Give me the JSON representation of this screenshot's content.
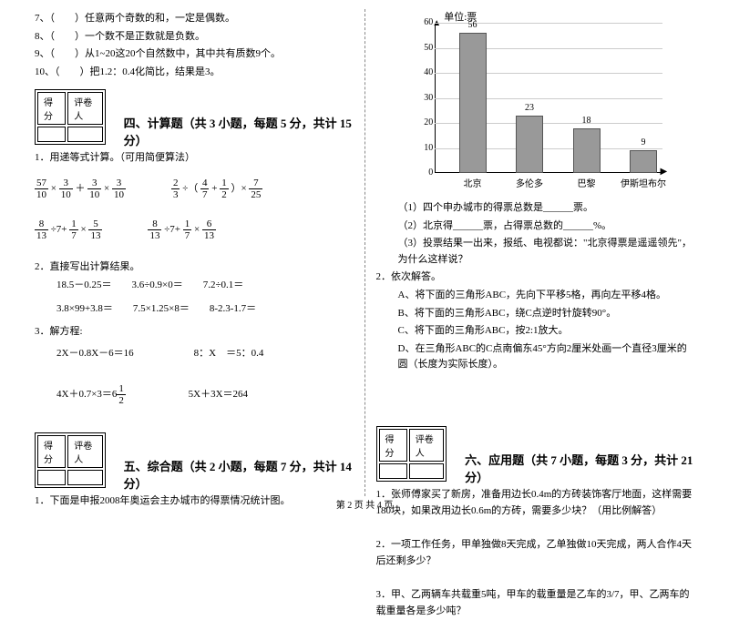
{
  "leftCol": {
    "q7": "7、（　　）任意两个奇数的和，一定是偶数。",
    "q8": "8、（　　）一个数不是正数就是负数。",
    "q9": "9、（　　）从1~20这20个自然数中，其中共有质数9个。",
    "q10": "10、（　　）把1.2：0.4化简比，结果是3。",
    "scoreHeader1": "得分",
    "scoreHeader2": "评卷人",
    "section4": "四、计算题（共 3 小题，每题 5 分，共计 15 分）",
    "calc1_title": "1．用递等式计算。（可用简便算法）",
    "c1a_n1": "57",
    "c1a_d1": "10",
    "c1a_n2": "3",
    "c1a_d2": "10",
    "c1a_n3": "3",
    "c1a_d3": "10",
    "c1b_n1": "2",
    "c1b_d1": "3",
    "c1b_n2": "4",
    "c1b_d2": "7",
    "c1b_n3": "1",
    "c1b_d3": "2",
    "c1b_n4": "7",
    "c1b_d4": "25",
    "c1c_n1": "8",
    "c1c_d1": "13",
    "c1c_n2": "1",
    "c1c_d2": "7",
    "c1c_n3": "5",
    "c1c_d3": "13",
    "c1d_n1": "8",
    "c1d_d1": "13",
    "c1d_n2": "1",
    "c1d_d2": "7",
    "c1d_n3": "6",
    "c1d_d3": "13",
    "calc2_title": "2．直接写出计算结果。",
    "c2a": "18.5－0.25＝",
    "c2b": "3.6÷0.9×0＝",
    "c2c": "7.2÷0.1＝",
    "c2d": "3.8×99+3.8＝",
    "c2e": "7.5×1.25×8＝",
    "c2f": "8-2.3-1.7＝",
    "calc3_title": "3．解方程:",
    "c3a": "2X－0.8X－6＝16",
    "c3b": "8：X　＝5：0.4",
    "c3c_pre": "4X＋0.7×3＝6",
    "c3c_n": "1",
    "c3c_d": "2",
    "c3d": "5X＋3X＝264",
    "section5": "五、综合题（共 2 小题，每题 7 分，共计 14 分）",
    "comp1": "1．下面是申报2008年奥运会主办城市的得票情况统计图。"
  },
  "rightCol": {
    "chart": {
      "unit": "单位:票",
      "ymax": 60,
      "ystep": 10,
      "categories": [
        "北京",
        "多伦多",
        "巴黎",
        "伊斯坦布尔"
      ],
      "values": [
        56,
        23,
        18,
        9
      ],
      "bar_color": "#999999",
      "grid_color": "#cccccc"
    },
    "q1_1": "（1）四个申办城市的得票总数是______票。",
    "q1_2": "（2）北京得______票，占得票总数的______%。",
    "q1_3": "（3）投票结果一出来，报纸、电视都说：\"北京得票是遥遥领先\"，为什么这样说？",
    "q2_title": "2．依次解答。",
    "q2a": "A、将下面的三角形ABC，先向下平移5格，再向左平移4格。",
    "q2b": "B、将下面的三角形ABC，绕C点逆时针旋转90°。",
    "q2c": "C、将下面的三角形ABC，按2:1放大。",
    "q2d": "D、在三角形ABC的C点南偏东45°方向2厘米处画一个直径3厘米的圆（长度为实际长度）。",
    "scoreHeader1": "得分",
    "scoreHeader2": "评卷人",
    "section6": "六、应用题（共 7 小题，每题 3 分，共计 21 分）",
    "app1": "1．张师傅家买了新房，准备用边长0.4m的方砖装饰客厅地面，这样需要180块，如果改用边长0.6m的方砖，需要多少块？（用比例解答）",
    "app2": "2．一项工作任务，甲单独做8天完成，乙单独做10天完成，两人合作4天后还剩多少？",
    "app3": "3．甲、乙两辆车共载重5吨，甲车的载重量是乙车的3/7，甲、乙两车的载重量各是多少吨？"
  },
  "footer": "第 2 页 共 4 页"
}
